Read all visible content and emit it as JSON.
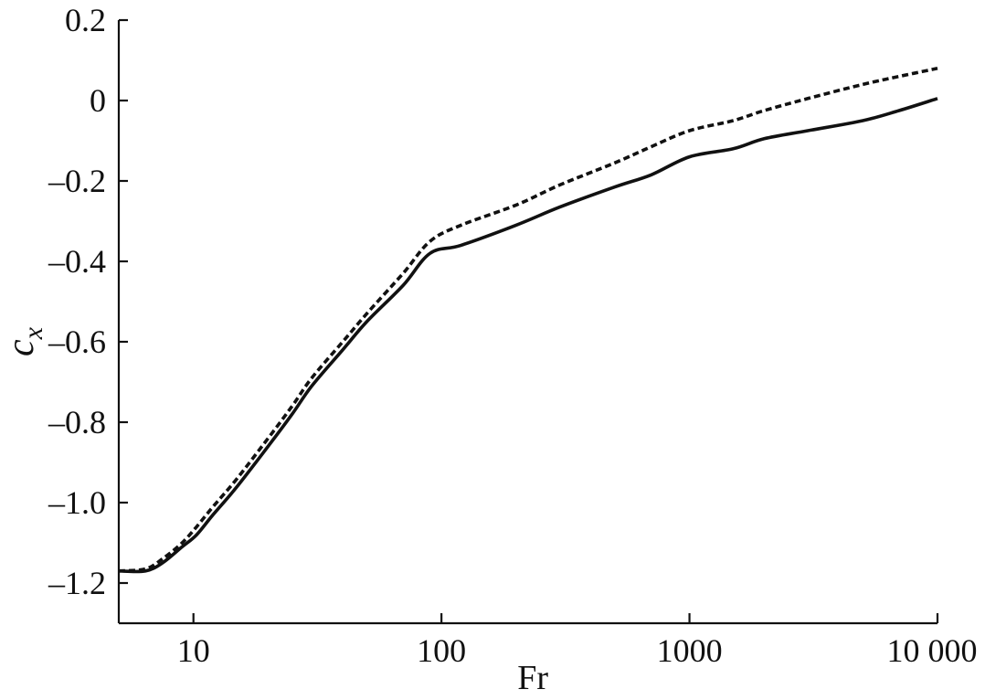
{
  "chart_data": {
    "type": "line",
    "title": "",
    "xlabel": "Fr",
    "ylabel": {
      "main": "c",
      "subscript": "x"
    },
    "xscale": "log",
    "xlim": [
      5,
      10000
    ],
    "ylim": [
      -1.3,
      0.2
    ],
    "grid": false,
    "legend": "none",
    "xticks": [
      {
        "value": 10,
        "label": "10"
      },
      {
        "value": 100,
        "label": "100"
      },
      {
        "value": 1000,
        "label": "1000"
      },
      {
        "value": 10000,
        "label": "10 000"
      }
    ],
    "yticks": [
      {
        "value": 0.2,
        "label": "0.2"
      },
      {
        "value": 0,
        "label": "0"
      },
      {
        "value": -0.2,
        "label": "–0.2"
      },
      {
        "value": -0.4,
        "label": "–0.4"
      },
      {
        "value": -0.6,
        "label": "–0.6"
      },
      {
        "value": -0.8,
        "label": "–0.8"
      },
      {
        "value": -1.0,
        "label": "–1.0"
      },
      {
        "value": -1.2,
        "label": "–1.2"
      }
    ],
    "series": [
      {
        "style": "solid",
        "color": "#111111",
        "x": [
          5,
          6.4,
          7.5,
          9,
          10.3,
          12,
          15,
          20,
          25,
          30,
          40,
          50,
          70,
          90,
          120,
          200,
          300,
          500,
          700,
          1000,
          1500,
          2000,
          3000,
          5000,
          7000,
          10000
        ],
        "y": [
          -1.17,
          -1.17,
          -1.15,
          -1.11,
          -1.08,
          -1.03,
          -0.96,
          -0.86,
          -0.78,
          -0.71,
          -0.62,
          -0.55,
          -0.46,
          -0.38,
          -0.36,
          -0.31,
          -0.265,
          -0.215,
          -0.185,
          -0.14,
          -0.12,
          -0.095,
          -0.075,
          -0.05,
          -0.025,
          0.005
        ]
      },
      {
        "style": "dashed",
        "color": "#111111",
        "x": [
          5,
          6.4,
          7.5,
          9,
          10.3,
          12,
          15,
          20,
          25,
          30,
          40,
          50,
          70,
          90,
          120,
          200,
          300,
          500,
          700,
          1000,
          1500,
          2000,
          3000,
          5000,
          7000,
          10000
        ],
        "y": [
          -1.17,
          -1.165,
          -1.14,
          -1.1,
          -1.06,
          -1.01,
          -0.94,
          -0.84,
          -0.76,
          -0.69,
          -0.6,
          -0.53,
          -0.43,
          -0.35,
          -0.31,
          -0.26,
          -0.21,
          -0.155,
          -0.115,
          -0.075,
          -0.05,
          -0.025,
          0.005,
          0.04,
          0.06,
          0.08
        ]
      }
    ]
  }
}
